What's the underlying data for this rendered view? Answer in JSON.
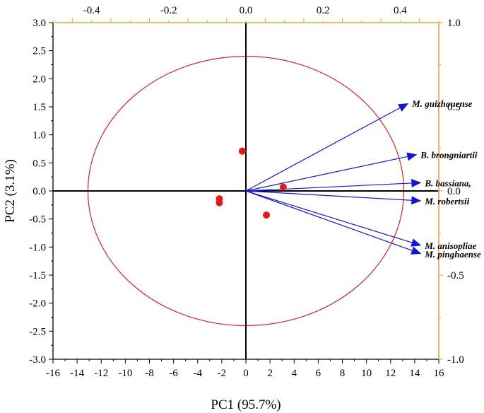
{
  "chart_data": {
    "type": "scatter",
    "subtype": "pca-biplot",
    "xlabel": "PC1 (95.7%)",
    "ylabel": "PC2 (3.1%)",
    "xlim": [
      -16,
      16
    ],
    "ylim": [
      -3.0,
      3.0
    ],
    "x_ticks": [
      "-16",
      "-14",
      "-12",
      "-10",
      "-8",
      "-6",
      "-4",
      "-2",
      "0",
      "2",
      "4",
      "6",
      "8",
      "10",
      "12",
      "14",
      "16"
    ],
    "y_ticks": [
      "3.0",
      "2.5",
      "2.0",
      "1.5",
      "1.0",
      "0.5",
      "0.0",
      "-0.5",
      "-1.0",
      "-1.5",
      "-2.0",
      "-2.5",
      "-3.0"
    ],
    "top_axis": {
      "lim": [
        -0.5,
        0.5
      ],
      "ticks": [
        "-0.4",
        "-0.2",
        "0.0",
        "0.2",
        "0.4"
      ],
      "color": "#e8a33d"
    },
    "right_axis": {
      "lim": [
        -1.0,
        1.0
      ],
      "ticks": [
        "1.0",
        "0.5",
        "0.0",
        "-0.5",
        "-1.0"
      ],
      "color": "#e8a33d"
    },
    "points": [
      {
        "x": -0.3,
        "y": 0.71
      },
      {
        "x": -2.2,
        "y": -0.14
      },
      {
        "x": -2.2,
        "y": -0.21
      },
      {
        "x": 1.7,
        "y": -0.43
      },
      {
        "x": 3.1,
        "y": 0.07
      }
    ],
    "loadings": [
      {
        "label": "M. guizhouense",
        "x": 0.38,
        "y": 0.53
      },
      {
        "label": "B. brongniartii",
        "x": 0.4,
        "y": 0.22
      },
      {
        "label": "B. bassiana,",
        "x": 0.41,
        "y": 0.05
      },
      {
        "label": "M. robertsii",
        "x": 0.41,
        "y": -0.06
      },
      {
        "label": "M. anisopliae",
        "x": 0.41,
        "y": -0.33
      },
      {
        "label": "M. pinghaense",
        "x": 0.41,
        "y": -0.38
      }
    ],
    "circle": {
      "center": [
        0,
        0
      ],
      "rx": 13.1,
      "ry": 2.4
    },
    "colors": {
      "points": "#e31a1c",
      "vectors": "#1515d6",
      "circle": "#d62728",
      "secondary_axes": "#e8a33d"
    }
  }
}
